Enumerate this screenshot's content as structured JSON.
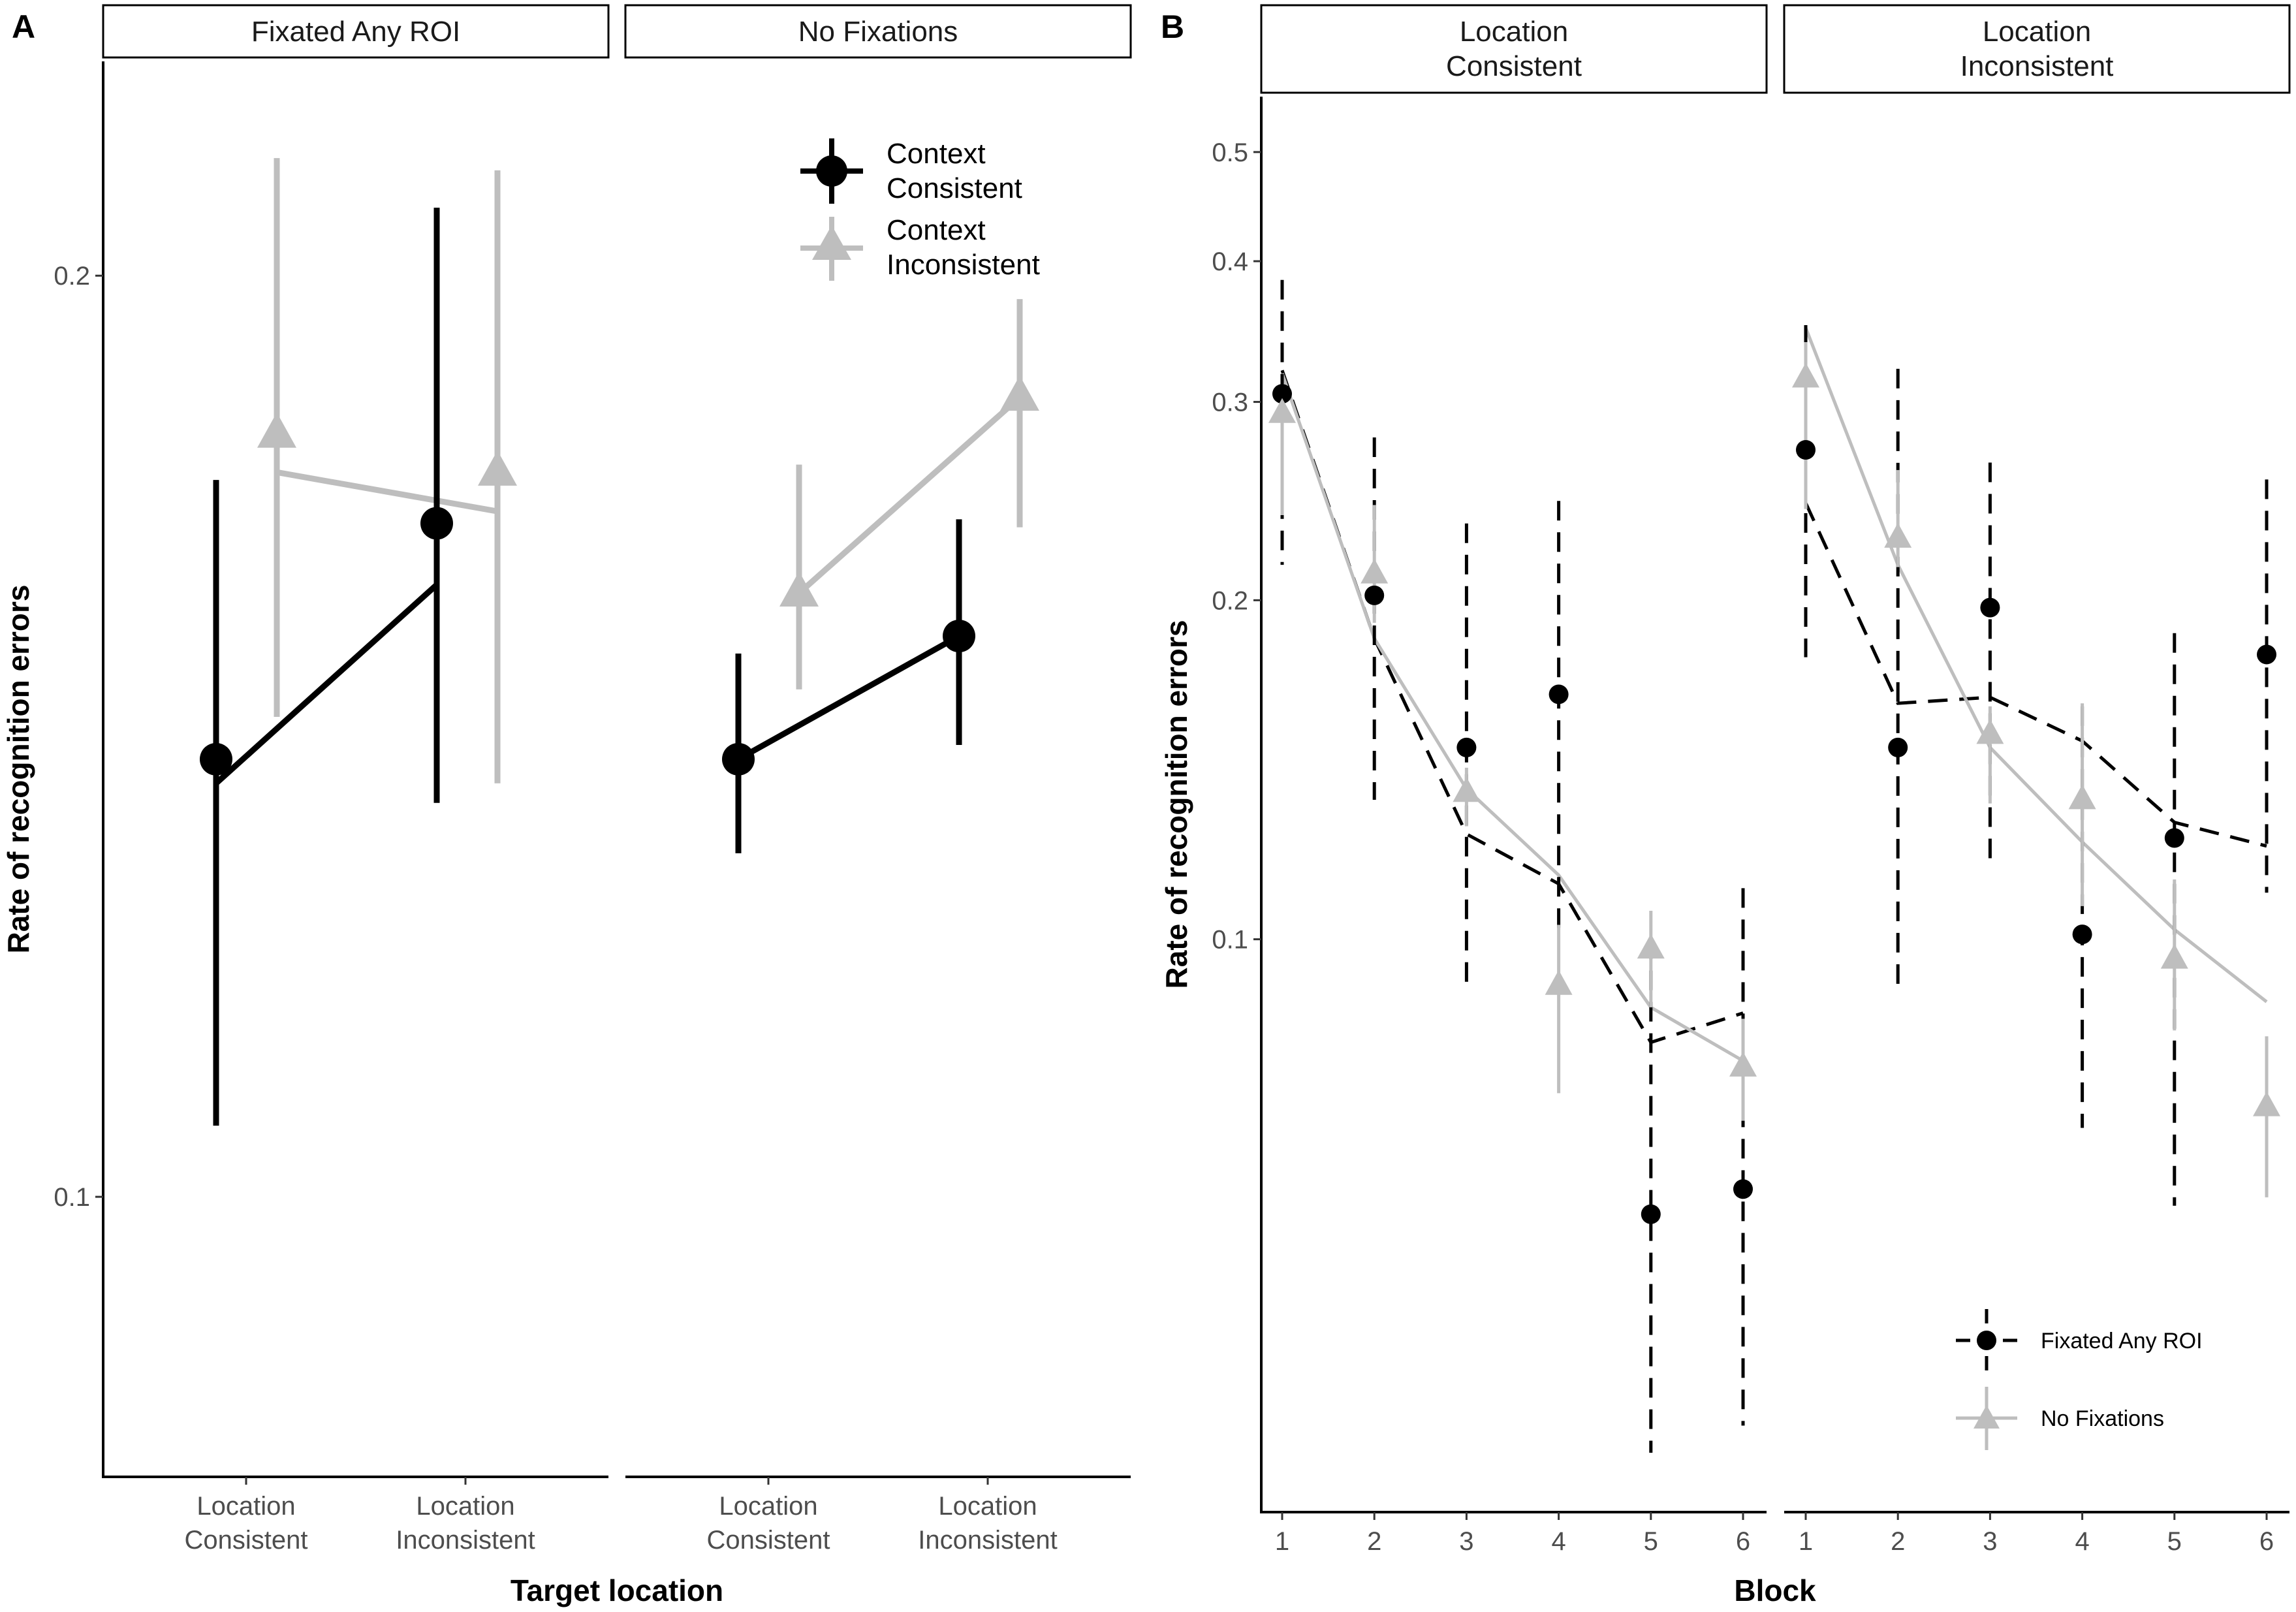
{
  "colors": {
    "consistent": "#000000",
    "inconsistent": "#BEBEBE",
    "strip_border": "#000000"
  },
  "chart_data": [
    {
      "panel": "A",
      "type": "line",
      "panel_label": "A",
      "facets": [
        "Fixated Any ROI",
        "No Fixations"
      ],
      "xlabel": "Target location",
      "ylabel": "Rate of recognition errors",
      "y_scale": "log",
      "ylim": [
        0.081,
        0.235
      ],
      "y_ticks": [
        {
          "value": 0.1,
          "label": "0.1"
        },
        {
          "value": 0.2,
          "label": "0.2"
        }
      ],
      "categories": [
        [
          "Location",
          "Consistent"
        ],
        [
          "Location",
          "Inconsistent"
        ]
      ],
      "legend": [
        [
          "Context",
          "Consistent"
        ],
        [
          "Context",
          "Inconsistent"
        ]
      ],
      "legend_position": "top-right",
      "series": [
        {
          "name": "Context Consistent",
          "key": "consistent",
          "marker": "circle",
          "dash": "solid",
          "facets": [
            {
              "point": [
                0.139,
                0.166
              ],
              "line": [
                0.1365,
                0.1585
              ],
              "lower": [
                0.1055,
                0.1345
              ],
              "upper": [
                0.1715,
                0.2105
              ]
            },
            {
              "point": [
                0.139,
                0.1525
              ],
              "line": [
                0.139,
                0.1525
              ],
              "lower": [
                0.1295,
                0.1405
              ],
              "upper": [
                0.1505,
                0.1665
              ]
            }
          ]
        },
        {
          "name": "Context Inconsistent",
          "key": "inconsistent",
          "marker": "triangle",
          "dash": "solid",
          "facets": [
            {
              "point": [
                0.1775,
                0.1725
              ],
              "line": [
                0.1725,
                0.1675
              ],
              "lower": [
                0.1435,
                0.1365
              ],
              "upper": [
                0.2185,
                0.2165
              ]
            },
            {
              "point": [
                0.1575,
                0.1825
              ],
              "line": [
                0.1575,
                0.1825
              ],
              "lower": [
                0.1465,
                0.1655
              ],
              "upper": [
                0.1735,
                0.1965
              ]
            }
          ]
        }
      ]
    },
    {
      "panel": "B",
      "type": "line",
      "panel_label": "B",
      "facets": [
        [
          "Location",
          "Consistent"
        ],
        [
          "Location",
          "Inconsistent"
        ]
      ],
      "xlabel": "Block",
      "ylabel": "Rate of recognition errors",
      "y_scale": "log",
      "ylim": [
        0.031,
        0.56
      ],
      "y_ticks": [
        {
          "value": 0.1,
          "label": "0.1"
        },
        {
          "value": 0.2,
          "label": "0.2"
        },
        {
          "value": 0.3,
          "label": "0.3"
        },
        {
          "value": 0.4,
          "label": "0.4"
        },
        {
          "value": 0.5,
          "label": "0.5"
        }
      ],
      "x": [
        1,
        2,
        3,
        4,
        5,
        6
      ],
      "legend": [
        "Fixated Any ROI",
        "No Fixations"
      ],
      "legend_position": "bottom-right",
      "series": [
        {
          "name": "Fixated Any ROI",
          "key": "consistent",
          "marker": "circle",
          "dash": "dashed",
          "facets": [
            {
              "point": [
                0.305,
                0.202,
                0.148,
                0.165,
                0.057,
                0.06
              ],
              "line": [
                0.32,
                0.185,
                0.124,
                0.112,
                0.081,
                0.086
              ],
              "lower": [
                0.215,
                0.133,
                0.091,
                0.1,
                0.035,
                0.037
              ],
              "upper": [
                0.385,
                0.279,
                0.234,
                0.245,
                0.1,
                0.111
              ]
            },
            {
              "point": [
                0.272,
                0.148,
                0.197,
                0.101,
                0.123,
                0.179
              ],
              "line": [
                0.244,
                0.162,
                0.164,
                0.15,
                0.127,
                0.121
              ],
              "lower": [
                0.178,
                0.091,
                0.118,
                0.068,
                0.058,
                0.11
              ],
              "upper": [
                0.351,
                0.321,
                0.265,
                0.161,
                0.187,
                0.256
              ]
            }
          ]
        },
        {
          "name": "No Fixations",
          "key": "inconsistent",
          "marker": "triangle",
          "dash": "solid",
          "facets": [
            {
              "point": [
                0.293,
                0.211,
                0.135,
                0.091,
                0.098,
                0.077
              ],
              "line": [
                0.318,
                0.185,
                0.136,
                0.114,
                0.087,
                0.078
              ],
              "lower": [
                0.238,
                0.191,
                0.126,
                0.073,
                0.087,
                0.069
              ],
              "upper": [
                0.307,
                0.243,
                0.142,
                0.103,
                0.106,
                0.085
              ]
            },
            {
              "point": [
                0.315,
                0.227,
                0.152,
                0.133,
                0.096,
                0.071
              ],
              "line": [
                0.349,
                0.215,
                0.148,
                0.122,
                0.102,
                0.088
              ],
              "lower": [
                0.241,
                0.214,
                0.132,
                0.107,
                0.083,
                0.059
              ],
              "upper": [
                0.339,
                0.261,
                0.161,
                0.162,
                0.113,
                0.082
              ]
            }
          ]
        }
      ]
    }
  ]
}
